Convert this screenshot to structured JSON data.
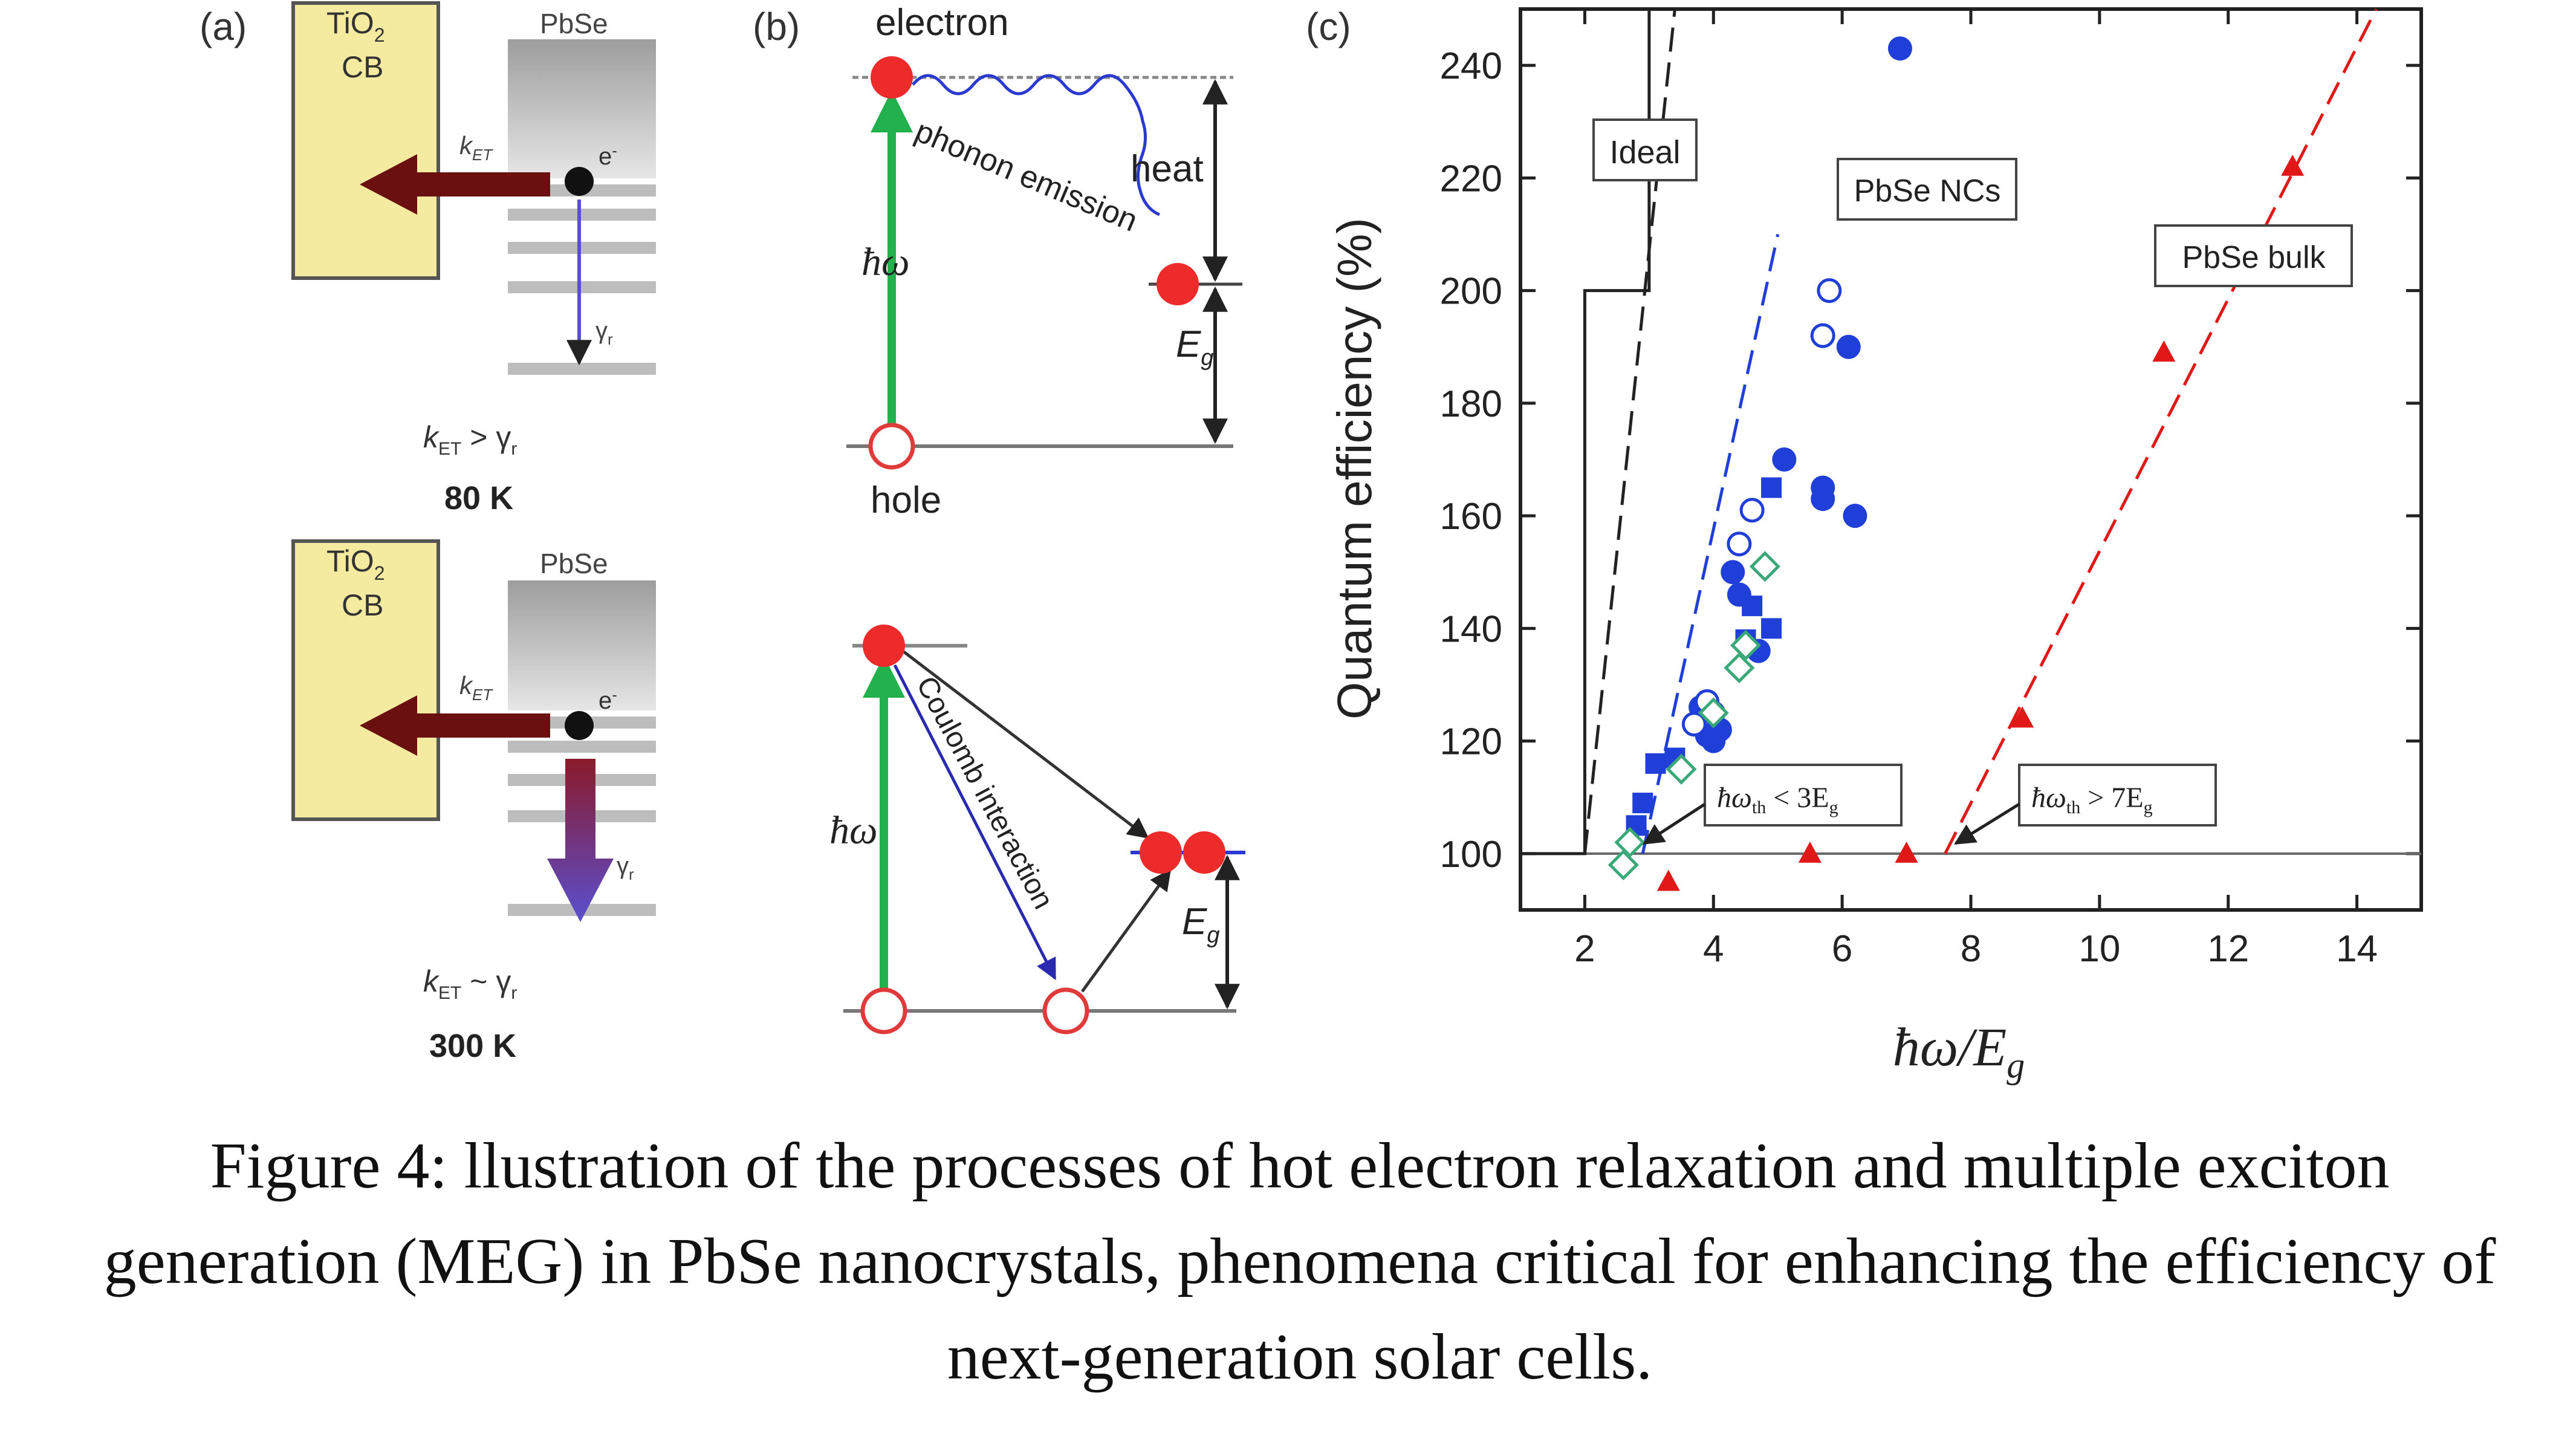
{
  "colors": {
    "tio2_fill": "#f4eaa0",
    "arrow_dark": "#6b1010",
    "electron_red": "#ee2b2b",
    "green_arrow": "#22b14c",
    "blue_series": "#1f3fd8",
    "green_diamond": "#3aa878",
    "red_triangle": "#e01818",
    "purple_arrow": "#6a3d9a"
  },
  "panel_a": {
    "label": "(a)",
    "top": {
      "tio2_line1": "TiO",
      "tio2_sub": "2",
      "tio2_line2": "CB",
      "pbse": "PbSe",
      "k_et": "k",
      "k_et_sub": "ET",
      "electron": "e",
      "electron_sup": "-",
      "gamma": "γ",
      "gamma_sub": "r",
      "relation_k": "k",
      "relation_sub": "ET",
      "relation_op": " > γ",
      "relation_gsub": "r",
      "temperature": "80 K"
    },
    "bottom": {
      "tio2_line1": "TiO",
      "tio2_sub": "2",
      "tio2_line2": "CB",
      "pbse": "PbSe",
      "k_et": "k",
      "k_et_sub": "ET",
      "electron": "e",
      "electron_sup": "-",
      "gamma": "γ",
      "gamma_sub": "r",
      "relation_k": "k",
      "relation_sub": "ET",
      "relation_op": " ~ γ",
      "relation_gsub": "r",
      "temperature": "300 K"
    }
  },
  "panel_b": {
    "label": "(b)",
    "electron": "electron",
    "hole": "hole",
    "heat": "heat",
    "phonon_emission": "phonon emission",
    "coulomb_interaction": "Coulomb interaction",
    "hbar_omega": "ħω",
    "eg": "E",
    "eg_sub": "g"
  },
  "chart_data": {
    "type": "scatter",
    "panel_label": "(c)",
    "xlabel": "ħω/E",
    "xlabel_sub": "g",
    "ylabel": "Quantum efficiency (%)",
    "xlim": [
      1,
      15
    ],
    "ylim": [
      90,
      250
    ],
    "xticks": [
      2,
      4,
      6,
      8,
      10,
      12,
      14
    ],
    "yticks": [
      100,
      120,
      140,
      160,
      180,
      200,
      220,
      240
    ],
    "annotations": {
      "ideal": "Ideal",
      "pbse_ncs": "PbSe NCs",
      "pbse_bulk": "PbSe bulk",
      "thr_nc": "ħω",
      "thr_nc_sub": "th",
      "thr_nc_rest": " < 3E",
      "thr_nc_rest_sub": "g",
      "thr_bulk": "ħω",
      "thr_bulk_sub": "th",
      "thr_bulk_rest": " > 7E",
      "thr_bulk_rest_sub": "g"
    },
    "ideal_step": {
      "x": [
        1,
        2,
        2,
        3,
        3
      ],
      "y": [
        100,
        100,
        200,
        200,
        250
      ]
    },
    "ideal_dashed": {
      "x": [
        2,
        3.4
      ],
      "y": [
        100,
        250
      ]
    },
    "nc_fit": {
      "x": [
        2.9,
        5.0
      ],
      "y": [
        100,
        210
      ]
    },
    "bulk_fit": {
      "x": [
        7.6,
        14.3
      ],
      "y": [
        100,
        250
      ]
    },
    "series": [
      {
        "name": "PbSe NCs (filled circles)",
        "marker": "circle-filled",
        "x": [
          6.9,
          6.1,
          5.1,
          5.7,
          5.7,
          6.2,
          4.3,
          4.4,
          4.0,
          4.1,
          4.0,
          3.8,
          3.9,
          4.7
        ],
        "y": [
          243,
          190,
          170,
          165,
          163,
          160,
          150,
          146,
          125,
          122,
          120,
          126,
          121,
          136
        ]
      },
      {
        "name": "PbSe NCs (open circles)",
        "marker": "circle-open",
        "x": [
          5.8,
          5.7,
          4.6,
          4.4,
          3.9,
          3.7
        ],
        "y": [
          200,
          192,
          161,
          155,
          127,
          123
        ]
      },
      {
        "name": "PbSe NCs (squares)",
        "marker": "square-filled",
        "x": [
          4.9,
          4.9,
          4.6,
          4.5,
          3.4,
          3.1,
          2.9,
          2.8
        ],
        "y": [
          165,
          140,
          144,
          138,
          117,
          116,
          109,
          105
        ]
      },
      {
        "name": "PbSe NCs (open diamonds)",
        "marker": "diamond-open",
        "x": [
          4.8,
          4.5,
          4.4,
          4.0,
          3.5,
          2.7,
          2.6
        ],
        "y": [
          151,
          137,
          133,
          125,
          115,
          102,
          98
        ]
      },
      {
        "name": "PbSe bulk",
        "marker": "triangle-filled",
        "x": [
          13.0,
          11.0,
          8.8,
          3.3,
          5.5,
          7.0
        ],
        "y": [
          222,
          189,
          124,
          95,
          100,
          100
        ]
      }
    ]
  },
  "caption": {
    "text": "Figure 4: llustration of the processes of hot electron relaxation and multiple exciton generation (MEG) in PbSe nanocrystals, phenomena critical for enhancing the efficiency of next-generation solar cells."
  }
}
